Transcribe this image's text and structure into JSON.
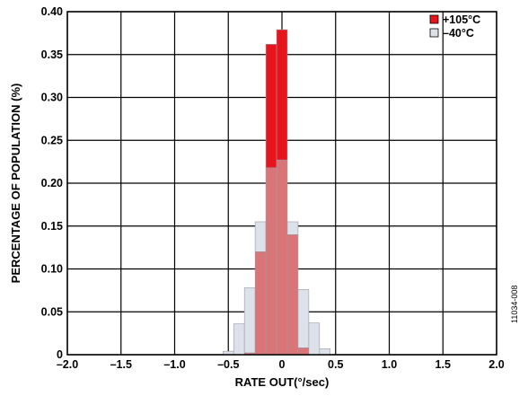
{
  "chart_data": {
    "type": "bar",
    "subtype": "overlaid-histogram",
    "xlabel": "RATE OUT(°/sec)",
    "ylabel": "PERCENTAGE OF POPULATION (%)",
    "xlim": [
      -2.0,
      2.0
    ],
    "ylim": [
      0,
      0.4
    ],
    "x_ticks": [
      "–2.0",
      "–1.5",
      "–1.0",
      "–0.5",
      "0",
      "0.5",
      "1.0",
      "1.5",
      "2.0"
    ],
    "y_ticks": [
      "0",
      "0.05",
      "0.10",
      "0.15",
      "0.20",
      "0.25",
      "0.30",
      "0.35",
      "0.40"
    ],
    "bin_width": 0.1,
    "bin_centers": [
      -0.5,
      -0.4,
      -0.3,
      -0.2,
      -0.1,
      0.0,
      0.1,
      0.2,
      0.3,
      0.4
    ],
    "series": [
      {
        "name": "+105°C",
        "color": "#e8141c",
        "values": [
          0.0,
          0.0,
          0.002,
          0.12,
          0.362,
          0.379,
          0.14,
          0.008,
          0.0,
          0.0
        ]
      },
      {
        "name": "–40°C",
        "color": "#dde1ea",
        "values": [
          0.004,
          0.036,
          0.078,
          0.155,
          0.218,
          0.227,
          0.155,
          0.076,
          0.037,
          0.007
        ]
      }
    ],
    "overlap_color": "#d97577",
    "grid": true,
    "legend_position": "top-right"
  },
  "figure_id": "11034-008"
}
